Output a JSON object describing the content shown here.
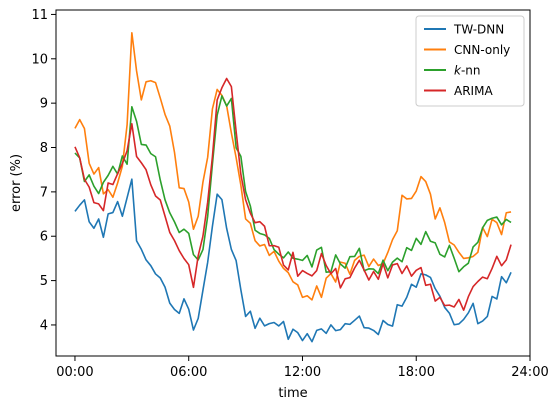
{
  "chart_data": {
    "type": "line",
    "xlabel": "time",
    "ylabel": "error (%)",
    "xlim": [
      -1,
      24
    ],
    "ylim": [
      3.3,
      11.1
    ],
    "x_ticks": [
      0,
      6,
      12,
      18,
      24
    ],
    "x_tick_labels": [
      "00:00",
      "06:00",
      "12:00",
      "18:00",
      "24:00"
    ],
    "y_ticks": [
      4,
      5,
      6,
      7,
      8,
      9,
      10,
      11
    ],
    "y_tick_labels": [
      "4",
      "5",
      "6",
      "7",
      "8",
      "9",
      "10",
      "11"
    ],
    "grid": false,
    "legend_position": "top-right",
    "x_interval_hours": 0.25,
    "series": [
      {
        "name": "TW-DNN",
        "color": "#1f77b4",
        "anchors": [
          [
            0,
            6.5
          ],
          [
            0.5,
            6.7
          ],
          [
            1,
            6.3
          ],
          [
            1.5,
            6.2
          ],
          [
            2,
            6.5
          ],
          [
            2.5,
            6.6
          ],
          [
            3,
            7.1
          ],
          [
            3.2,
            6.0
          ],
          [
            3.5,
            5.5
          ],
          [
            4,
            5.5
          ],
          [
            4.5,
            5.0
          ],
          [
            5,
            4.6
          ],
          [
            5.5,
            4.4
          ],
          [
            6,
            4.2
          ],
          [
            6.3,
            3.9
          ],
          [
            6.6,
            4.4
          ],
          [
            7,
            5.5
          ],
          [
            7.4,
            7.0
          ],
          [
            7.8,
            6.8
          ],
          [
            8.2,
            6.0
          ],
          [
            8.5,
            5.3
          ],
          [
            9,
            4.4
          ],
          [
            9.5,
            4.1
          ],
          [
            10,
            4.0
          ],
          [
            10.5,
            3.9
          ],
          [
            11,
            3.9
          ],
          [
            11.5,
            3.9
          ],
          [
            12,
            3.7
          ],
          [
            12.5,
            3.8
          ],
          [
            13,
            3.9
          ],
          [
            14,
            3.9
          ],
          [
            15,
            4.0
          ],
          [
            16,
            4.0
          ],
          [
            17,
            4.2
          ],
          [
            17.5,
            4.5
          ],
          [
            18,
            5.0
          ],
          [
            18.5,
            5.1
          ],
          [
            19,
            4.8
          ],
          [
            19.5,
            4.3
          ],
          [
            20,
            4.0
          ],
          [
            20.5,
            3.9
          ],
          [
            21,
            4.2
          ],
          [
            21.5,
            4.3
          ],
          [
            22,
            4.5
          ],
          [
            22.5,
            4.9
          ],
          [
            23,
            5.2
          ]
        ]
      },
      {
        "name": "CNN-only",
        "color": "#ff7f0e",
        "anchors": [
          [
            0,
            8.6
          ],
          [
            0.3,
            8.5
          ],
          [
            0.7,
            7.8
          ],
          [
            1,
            7.5
          ],
          [
            1.5,
            7.0
          ],
          [
            2,
            6.9
          ],
          [
            2.5,
            7.5
          ],
          [
            2.8,
            8.8
          ],
          [
            3,
            10.6
          ],
          [
            3.3,
            9.8
          ],
          [
            3.6,
            9.2
          ],
          [
            4,
            9.7
          ],
          [
            4.3,
            9.3
          ],
          [
            4.6,
            9.0
          ],
          [
            5,
            8.4
          ],
          [
            5.3,
            7.6
          ],
          [
            5.6,
            7.0
          ],
          [
            6,
            6.6
          ],
          [
            6.3,
            6.2
          ],
          [
            6.6,
            6.6
          ],
          [
            7,
            7.8
          ],
          [
            7.3,
            9.0
          ],
          [
            7.6,
            9.4
          ],
          [
            8,
            9.1
          ],
          [
            8.4,
            8.2
          ],
          [
            8.7,
            7.2
          ],
          [
            9,
            6.5
          ],
          [
            9.5,
            5.9
          ],
          [
            10,
            5.7
          ],
          [
            10.5,
            5.5
          ],
          [
            11,
            5.3
          ],
          [
            11.5,
            5.2
          ],
          [
            12,
            4.8
          ],
          [
            12.5,
            4.7
          ],
          [
            13,
            4.8
          ],
          [
            13.5,
            5.0
          ],
          [
            14,
            5.2
          ],
          [
            15,
            5.4
          ],
          [
            16,
            5.5
          ],
          [
            16.5,
            5.8
          ],
          [
            17,
            6.3
          ],
          [
            17.5,
            7.0
          ],
          [
            18,
            7.2
          ],
          [
            18.3,
            7.3
          ],
          [
            18.6,
            6.9
          ],
          [
            19,
            6.6
          ],
          [
            19.5,
            6.1
          ],
          [
            20,
            5.8
          ],
          [
            20.5,
            5.5
          ],
          [
            21,
            5.6
          ],
          [
            21.5,
            5.9
          ],
          [
            22,
            6.2
          ],
          [
            22.5,
            6.3
          ],
          [
            23,
            6.7
          ]
        ]
      },
      {
        "name": "k-nn",
        "color": "#2ca02c",
        "anchors": [
          [
            0,
            7.9
          ],
          [
            0.4,
            7.5
          ],
          [
            0.8,
            7.4
          ],
          [
            1.2,
            7.0
          ],
          [
            1.6,
            7.1
          ],
          [
            2,
            7.3
          ],
          [
            2.4,
            7.6
          ],
          [
            2.8,
            7.8
          ],
          [
            3,
            9.0
          ],
          [
            3.3,
            8.5
          ],
          [
            3.7,
            8.0
          ],
          [
            4,
            7.9
          ],
          [
            4.3,
            7.6
          ],
          [
            4.7,
            7.0
          ],
          [
            5,
            6.6
          ],
          [
            5.4,
            6.2
          ],
          [
            5.8,
            6.0
          ],
          [
            6.2,
            5.8
          ],
          [
            6.5,
            5.4
          ],
          [
            6.8,
            5.9
          ],
          [
            7.2,
            7.2
          ],
          [
            7.5,
            8.5
          ],
          [
            7.8,
            9.1
          ],
          [
            8.2,
            8.9
          ],
          [
            8.5,
            8.2
          ],
          [
            9,
            7.0
          ],
          [
            9.4,
            6.3
          ],
          [
            9.8,
            6.2
          ],
          [
            10.2,
            6.0
          ],
          [
            10.6,
            5.6
          ],
          [
            11,
            5.6
          ],
          [
            11.5,
            5.5
          ],
          [
            12,
            5.3
          ],
          [
            12.5,
            5.4
          ],
          [
            13,
            5.5
          ],
          [
            13.5,
            5.3
          ],
          [
            14,
            5.4
          ],
          [
            15,
            5.5
          ],
          [
            16,
            5.4
          ],
          [
            17,
            5.5
          ],
          [
            17.5,
            5.7
          ],
          [
            18,
            6.0
          ],
          [
            18.5,
            5.9
          ],
          [
            19,
            5.8
          ],
          [
            19.5,
            5.7
          ],
          [
            20,
            5.5
          ],
          [
            20.5,
            5.4
          ],
          [
            21,
            5.7
          ],
          [
            21.5,
            6.0
          ],
          [
            22,
            6.2
          ],
          [
            22.5,
            6.5
          ],
          [
            23,
            6.6
          ]
        ]
      },
      {
        "name": "ARIMA",
        "color": "#d62728",
        "anchors": [
          [
            0,
            7.9
          ],
          [
            0.4,
            7.5
          ],
          [
            0.8,
            7.0
          ],
          [
            1.2,
            6.6
          ],
          [
            1.6,
            6.8
          ],
          [
            2,
            7.1
          ],
          [
            2.4,
            7.3
          ],
          [
            2.8,
            7.7
          ],
          [
            3,
            8.3
          ],
          [
            3.3,
            7.9
          ],
          [
            3.6,
            7.6
          ],
          [
            4,
            7.2
          ],
          [
            4.4,
            7.0
          ],
          [
            4.8,
            6.6
          ],
          [
            5.2,
            6.0
          ],
          [
            5.6,
            5.6
          ],
          [
            6,
            5.2
          ],
          [
            6.3,
            5.0
          ],
          [
            6.6,
            5.4
          ],
          [
            7,
            6.8
          ],
          [
            7.3,
            8.0
          ],
          [
            7.6,
            9.2
          ],
          [
            7.9,
            9.7
          ],
          [
            8.2,
            9.2
          ],
          [
            8.5,
            8.3
          ],
          [
            8.8,
            7.0
          ],
          [
            9.2,
            6.4
          ],
          [
            9.6,
            6.2
          ],
          [
            10,
            6.0
          ],
          [
            10.5,
            5.8
          ],
          [
            11,
            5.5
          ],
          [
            11.5,
            5.4
          ],
          [
            12,
            5.2
          ],
          [
            12.5,
            5.3
          ],
          [
            13,
            5.4
          ],
          [
            13.5,
            5.2
          ],
          [
            14,
            5.1
          ],
          [
            15,
            5.3
          ],
          [
            16,
            5.2
          ],
          [
            17,
            5.2
          ],
          [
            17.5,
            5.1
          ],
          [
            18,
            5.3
          ],
          [
            18.5,
            5.0
          ],
          [
            19,
            4.7
          ],
          [
            19.5,
            4.5
          ],
          [
            20,
            4.4
          ],
          [
            20.5,
            4.5
          ],
          [
            21,
            4.7
          ],
          [
            21.5,
            5.0
          ],
          [
            22,
            5.2
          ],
          [
            22.5,
            5.4
          ],
          [
            23,
            5.6
          ]
        ]
      }
    ]
  }
}
